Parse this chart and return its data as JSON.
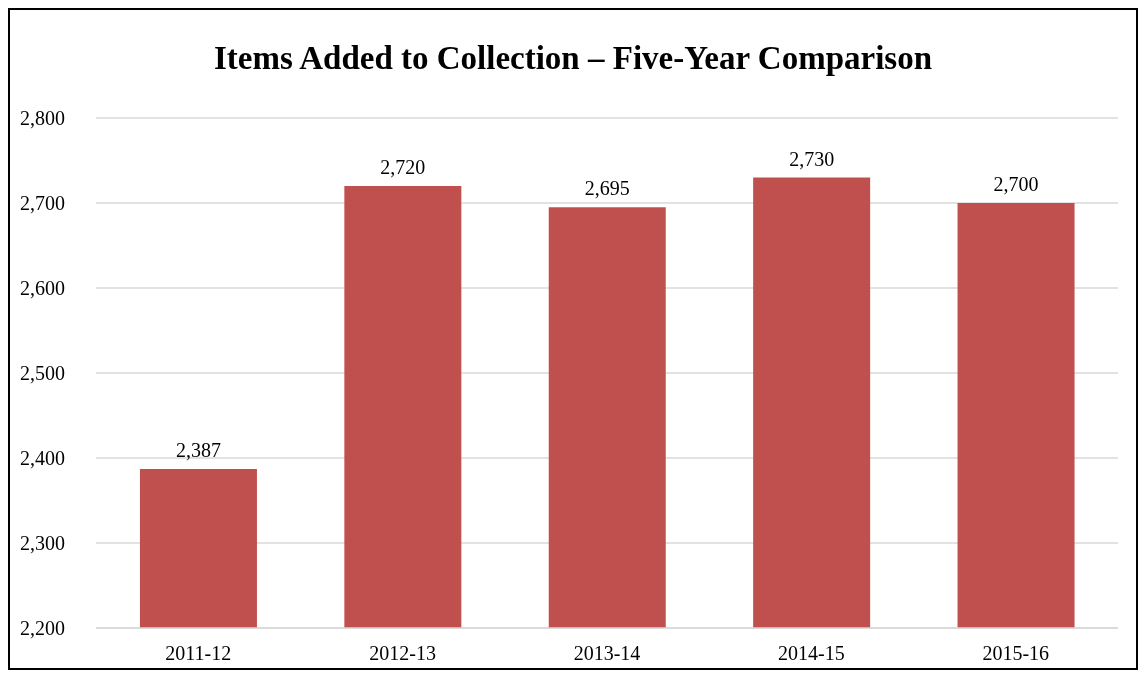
{
  "chart_data": {
    "type": "bar",
    "title": "Items Added to Collection – Five-Year Comparison",
    "categories": [
      "2011-12",
      "2012-13",
      "2013-14",
      "2014-15",
      "2015-16"
    ],
    "values": [
      2387,
      2720,
      2695,
      2730,
      2700
    ],
    "value_labels": [
      "2,387",
      "2,720",
      "2,695",
      "2,730",
      "2,700"
    ],
    "color": "#c0504d",
    "ylim": [
      2200,
      2800
    ],
    "yticks": [
      {
        "value": 2200,
        "label": "2,200"
      },
      {
        "value": 2300,
        "label": "2,300"
      },
      {
        "value": 2400,
        "label": "2,400"
      },
      {
        "value": 2500,
        "label": "2,500"
      },
      {
        "value": 2600,
        "label": "2,600"
      },
      {
        "value": 2700,
        "label": "2,700"
      },
      {
        "value": 2800,
        "label": "2,800"
      }
    ],
    "grid": "y"
  }
}
